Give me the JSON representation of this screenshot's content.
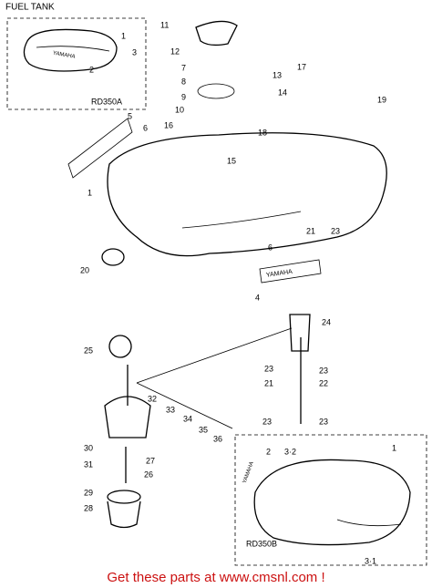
{
  "header": {
    "title": "FUEL TANK"
  },
  "inset_a": {
    "label": "RD350A",
    "callouts": [
      "1",
      "3",
      "2"
    ],
    "badge": "YAMAHA"
  },
  "callouts": [
    "11",
    "12",
    "7",
    "8",
    "9",
    "10",
    "16",
    "5",
    "6",
    "18",
    "15",
    "17",
    "13",
    "14",
    "19",
    "1",
    "21",
    "23",
    "6",
    "20",
    "4",
    "24",
    "25",
    "23",
    "23",
    "21",
    "22",
    "23",
    "23",
    "32",
    "33",
    "34",
    "35",
    "36",
    "30",
    "31",
    "27",
    "26",
    "29",
    "28"
  ],
  "emblem": "YAMAHA",
  "inset_b": {
    "label": "RD350B",
    "callouts": [
      "2",
      "3·2",
      "1",
      "3·1"
    ],
    "badge": "YAMAHA"
  },
  "footer": {
    "text": "Get these parts at www.cmsnl.com !"
  }
}
